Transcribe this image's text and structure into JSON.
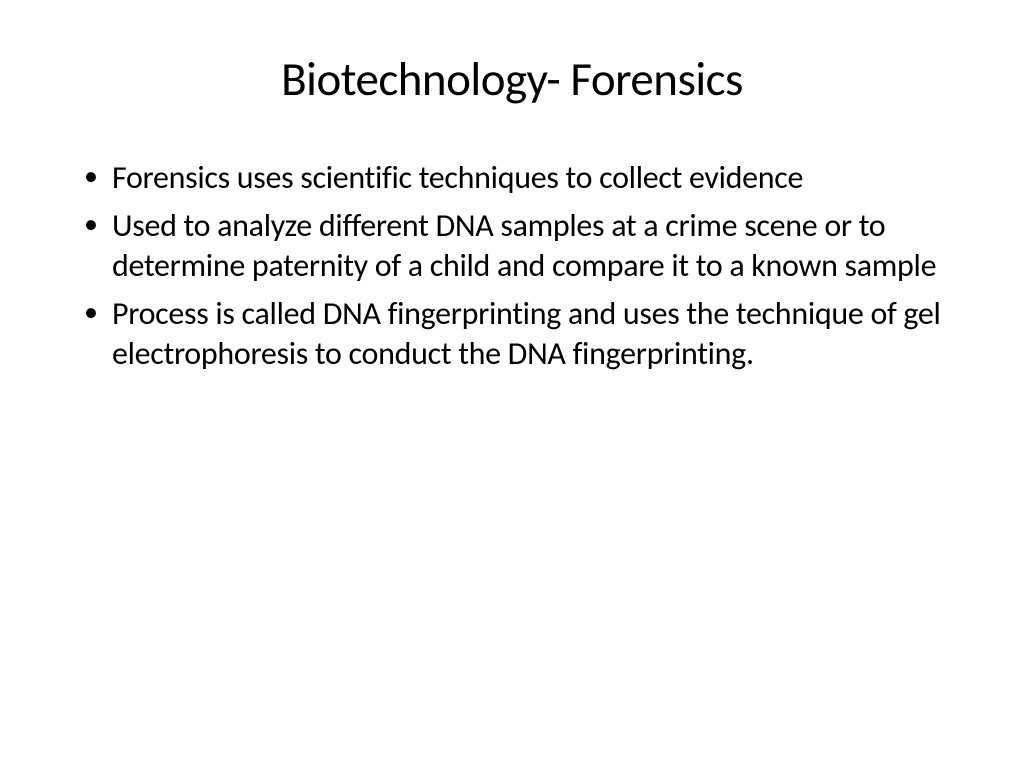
{
  "slide": {
    "title": "Biotechnology- Forensics",
    "title_fontsize": 47,
    "title_color": "#000000",
    "title_align": "center",
    "bullets": [
      "Forensics uses scientific techniques to collect evidence",
      "Used to analyze different DNA samples at a crime scene or to determine paternity of a child and compare it to a known sample",
      "Process is called DNA fingerprinting and uses the technique of gel electrophoresis to conduct the DNA fingerprinting."
    ],
    "body_fontsize": 32,
    "body_color": "#000000",
    "bullet_marker": "•",
    "background_color": "#ffffff",
    "font_family": "Calibri"
  }
}
